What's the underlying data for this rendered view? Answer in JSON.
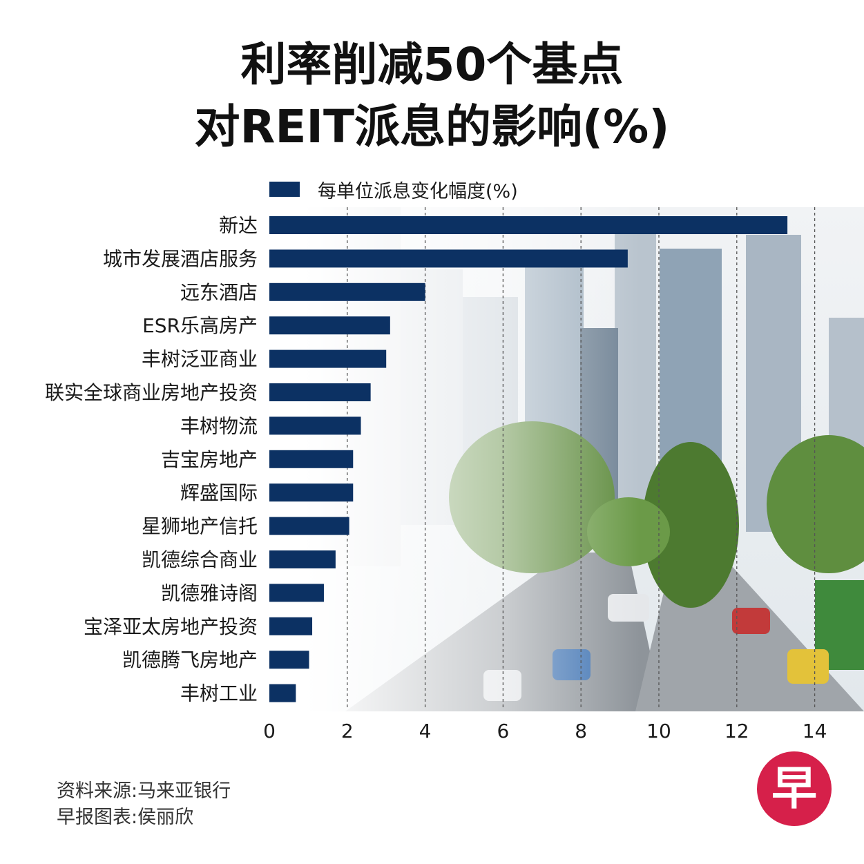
{
  "title_line1": "利率削减50个基点",
  "title_line2": "对REIT派息的影响(%)",
  "legend_label": "每单位派息变化幅度(%)",
  "source_line": "资料来源:马来亚银行",
  "credit_line": "早报图表:侯丽欣",
  "logo_char": "早",
  "colors": {
    "bar": "#0c3163",
    "grid": "#555555",
    "logo": "#d6204a"
  },
  "chart_data": {
    "type": "bar",
    "orientation": "horizontal",
    "categories": [
      "新达",
      "城市发展酒店服务",
      "远东酒店",
      "ESR乐高房产",
      "丰树泛亚商业",
      "联实全球商业房地产投资",
      "丰树物流",
      "吉宝房地产",
      "辉盛国际",
      "星狮地产信托",
      "凯德综合商业",
      "凯德雅诗阁",
      "宝泽亚太房地产投资",
      "凯德腾飞房地产",
      "丰树工业"
    ],
    "series": [
      {
        "name": "每单位派息变化幅度(%)",
        "values": [
          13.3,
          9.2,
          4.0,
          3.1,
          3.0,
          2.6,
          2.35,
          2.15,
          2.15,
          2.05,
          1.7,
          1.4,
          1.1,
          1.02,
          0.68
        ]
      }
    ],
    "xlim": [
      0,
      15
    ],
    "xticks": [
      0,
      2,
      4,
      6,
      8,
      10,
      12,
      14
    ],
    "grid": true,
    "legend": "top"
  }
}
